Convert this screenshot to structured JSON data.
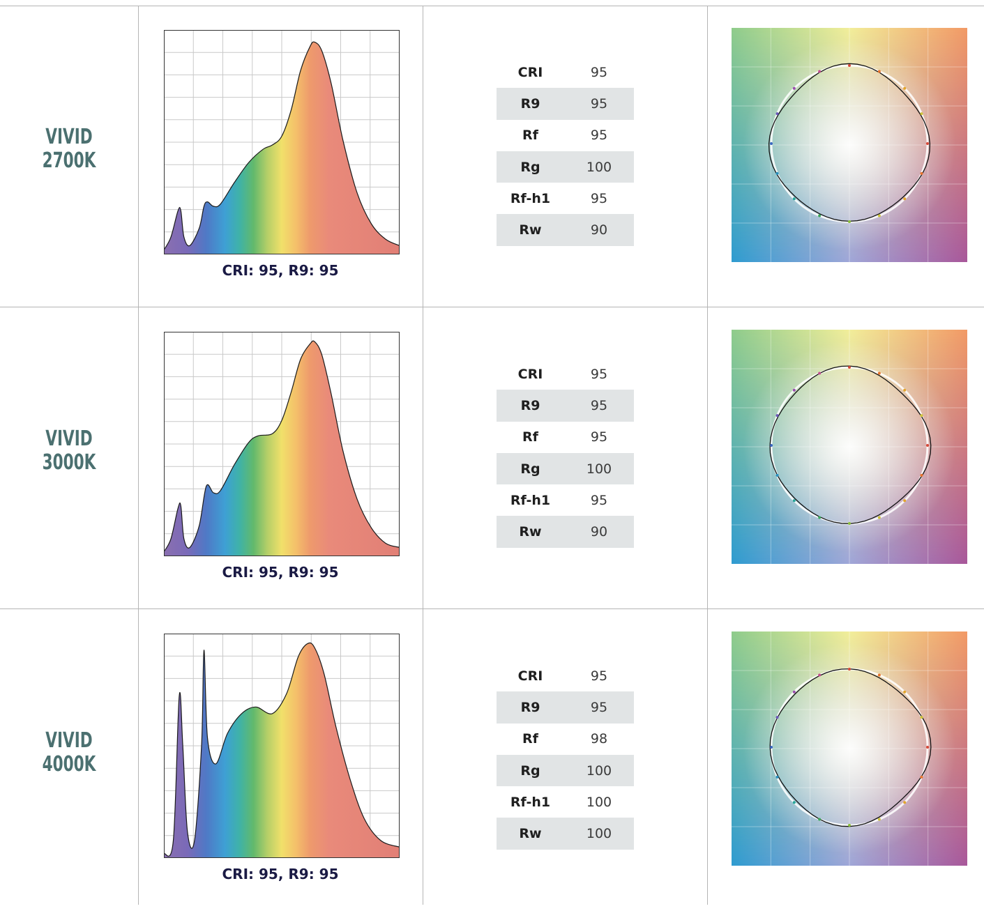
{
  "rows": [
    {
      "label_line1": "VIVID",
      "label_line2": "2700K",
      "spd_caption": "CRI: 95, R9: 95",
      "metrics": [
        {
          "name": "CRI",
          "value": "95"
        },
        {
          "name": "R9",
          "value": "95"
        },
        {
          "name": "Rf",
          "value": "95"
        },
        {
          "name": "Rg",
          "value": "100"
        },
        {
          "name": "Rf-h1",
          "value": "95"
        },
        {
          "name": "Rw",
          "value": "90"
        }
      ],
      "spd_profile": "2700K"
    },
    {
      "label_line1": "VIVID",
      "label_line2": "3000K",
      "spd_caption": "CRI: 95, R9: 95",
      "metrics": [
        {
          "name": "CRI",
          "value": "95"
        },
        {
          "name": "R9",
          "value": "95"
        },
        {
          "name": "Rf",
          "value": "95"
        },
        {
          "name": "Rg",
          "value": "100"
        },
        {
          "name": "Rf-h1",
          "value": "95"
        },
        {
          "name": "Rw",
          "value": "90"
        }
      ],
      "spd_profile": "3000K"
    },
    {
      "label_line1": "VIVID",
      "label_line2": "4000K",
      "spd_caption": "CRI: 95, R9: 95",
      "metrics": [
        {
          "name": "CRI",
          "value": "95"
        },
        {
          "name": "R9",
          "value": "95"
        },
        {
          "name": "Rf",
          "value": "98"
        },
        {
          "name": "Rg",
          "value": "100"
        },
        {
          "name": "Rf-h1",
          "value": "100"
        },
        {
          "name": "Rw",
          "value": "100"
        }
      ],
      "spd_profile": "4000K"
    }
  ],
  "colors": {
    "label": "#4b7070",
    "caption": "#1a1a44",
    "shaded_row": "#e1e4e5",
    "grid_line": "#b4b4b4"
  }
}
